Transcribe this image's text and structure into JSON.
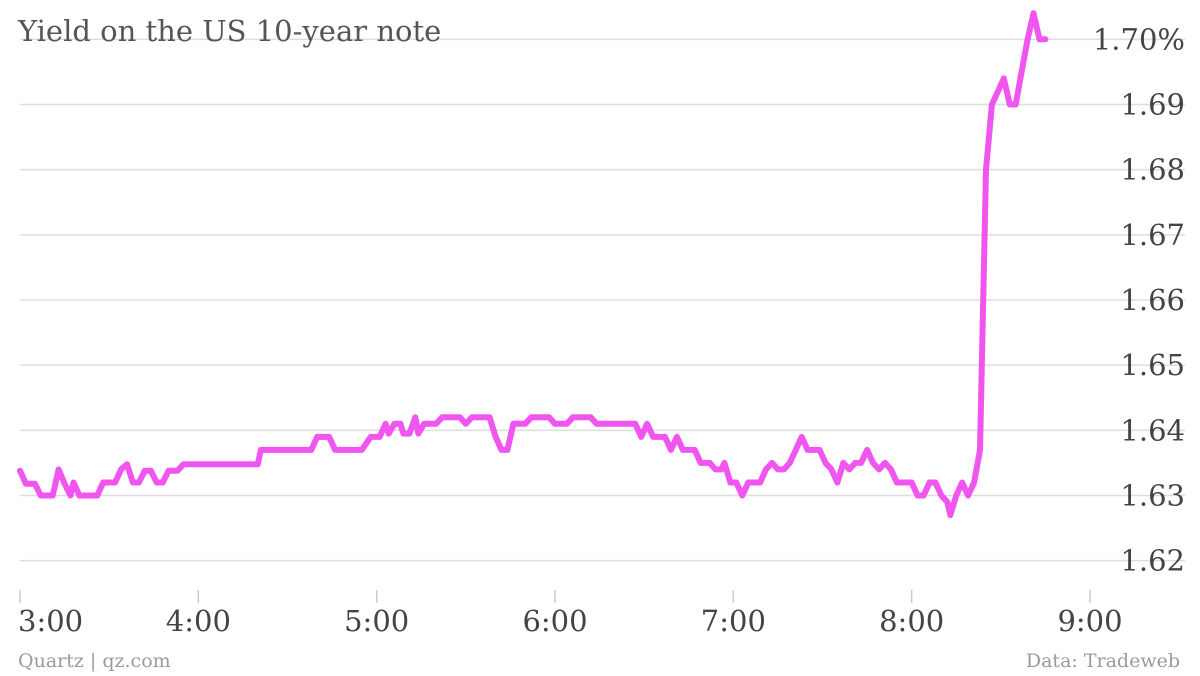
{
  "chart_data": {
    "type": "line",
    "title": "Yield on the US 10-year note",
    "xlabel": "",
    "ylabel": "",
    "x_ticks": [
      "3:00",
      "4:00",
      "5:00",
      "6:00",
      "7:00",
      "8:00",
      "9:00"
    ],
    "y_ticks": [
      {
        "value": 1.62,
        "label": "1.62"
      },
      {
        "value": 1.63,
        "label": "1.63"
      },
      {
        "value": 1.64,
        "label": "1.64"
      },
      {
        "value": 1.65,
        "label": "1.65"
      },
      {
        "value": 1.66,
        "label": "1.66"
      },
      {
        "value": 1.67,
        "label": "1.67"
      },
      {
        "value": 1.68,
        "label": "1.68"
      },
      {
        "value": 1.69,
        "label": "1.69"
      },
      {
        "value": 1.7,
        "label": "1.70%"
      }
    ],
    "xlim": [
      "3:00",
      "9:00"
    ],
    "ylim": [
      1.6155,
      1.7045
    ],
    "grid": true,
    "y_axis_position": "right",
    "series": [
      {
        "color": "#f055f0",
        "points": [
          [
            "3:00",
            1.6338
          ],
          [
            "3:02",
            1.6318
          ],
          [
            "3:05",
            1.6318
          ],
          [
            "3:07",
            1.63
          ],
          [
            "3:09",
            1.63
          ],
          [
            "3:11",
            1.63
          ],
          [
            "3:13",
            1.634
          ],
          [
            "3:15",
            1.6318
          ],
          [
            "3:17",
            1.63
          ],
          [
            "3:18",
            1.632
          ],
          [
            "3:20",
            1.63
          ],
          [
            "3:23",
            1.63
          ],
          [
            "3:26",
            1.63
          ],
          [
            "3:28",
            1.632
          ],
          [
            "3:32",
            1.632
          ],
          [
            "3:34",
            1.634
          ],
          [
            "3:36",
            1.6348
          ],
          [
            "3:38",
            1.632
          ],
          [
            "3:40",
            1.632
          ],
          [
            "3:42",
            1.6338
          ],
          [
            "3:44",
            1.6338
          ],
          [
            "3:46",
            1.632
          ],
          [
            "3:48",
            1.632
          ],
          [
            "3:50",
            1.6338
          ],
          [
            "3:53",
            1.6338
          ],
          [
            "3:55",
            1.6348
          ],
          [
            "4:00",
            1.6348
          ],
          [
            "4:10",
            1.6348
          ],
          [
            "4:20",
            1.6348
          ],
          [
            "4:21",
            1.637
          ],
          [
            "4:30",
            1.637
          ],
          [
            "4:38",
            1.637
          ],
          [
            "4:40",
            1.639
          ],
          [
            "4:44",
            1.639
          ],
          [
            "4:46",
            1.637
          ],
          [
            "4:50",
            1.637
          ],
          [
            "4:55",
            1.637
          ],
          [
            "4:58",
            1.639
          ],
          [
            "5:01",
            1.639
          ],
          [
            "5:03",
            1.641
          ],
          [
            "5:04",
            1.6395
          ],
          [
            "5:06",
            1.641
          ],
          [
            "5:08",
            1.641
          ],
          [
            "5:09",
            1.6395
          ],
          [
            "5:11",
            1.6395
          ],
          [
            "5:13",
            1.642
          ],
          [
            "5:14",
            1.6395
          ],
          [
            "5:16",
            1.641
          ],
          [
            "5:20",
            1.641
          ],
          [
            "5:22",
            1.642
          ],
          [
            "5:28",
            1.642
          ],
          [
            "5:30",
            1.641
          ],
          [
            "5:32",
            1.642
          ],
          [
            "5:38",
            1.642
          ],
          [
            "5:40",
            1.639
          ],
          [
            "5:42",
            1.637
          ],
          [
            "5:44",
            1.637
          ],
          [
            "5:46",
            1.641
          ],
          [
            "5:50",
            1.641
          ],
          [
            "5:52",
            1.642
          ],
          [
            "5:58",
            1.642
          ],
          [
            "6:00",
            1.641
          ],
          [
            "6:04",
            1.641
          ],
          [
            "6:06",
            1.642
          ],
          [
            "6:12",
            1.642
          ],
          [
            "6:14",
            1.641
          ],
          [
            "6:20",
            1.641
          ],
          [
            "6:25",
            1.641
          ],
          [
            "6:27",
            1.641
          ],
          [
            "6:29",
            1.639
          ],
          [
            "6:31",
            1.641
          ],
          [
            "6:33",
            1.639
          ],
          [
            "6:37",
            1.639
          ],
          [
            "6:39",
            1.637
          ],
          [
            "6:41",
            1.639
          ],
          [
            "6:43",
            1.637
          ],
          [
            "6:47",
            1.637
          ],
          [
            "6:49",
            1.635
          ],
          [
            "6:52",
            1.635
          ],
          [
            "6:54",
            1.634
          ],
          [
            "6:56",
            1.634
          ],
          [
            "6:57",
            1.635
          ],
          [
            "6:59",
            1.632
          ],
          [
            "7:01",
            1.632
          ],
          [
            "7:03",
            1.63
          ],
          [
            "7:05",
            1.632
          ],
          [
            "7:09",
            1.632
          ],
          [
            "7:11",
            1.634
          ],
          [
            "7:13",
            1.635
          ],
          [
            "7:15",
            1.634
          ],
          [
            "7:17",
            1.634
          ],
          [
            "7:19",
            1.635
          ],
          [
            "7:21",
            1.637
          ],
          [
            "7:23",
            1.639
          ],
          [
            "7:25",
            1.637
          ],
          [
            "7:29",
            1.637
          ],
          [
            "7:31",
            1.635
          ],
          [
            "7:33",
            1.634
          ],
          [
            "7:35",
            1.632
          ],
          [
            "7:37",
            1.635
          ],
          [
            "7:39",
            1.634
          ],
          [
            "7:41",
            1.635
          ],
          [
            "7:43",
            1.635
          ],
          [
            "7:45",
            1.637
          ],
          [
            "7:47",
            1.635
          ],
          [
            "7:49",
            1.634
          ],
          [
            "7:51",
            1.635
          ],
          [
            "7:53",
            1.634
          ],
          [
            "7:55",
            1.632
          ],
          [
            "7:58",
            1.632
          ],
          [
            "8:00",
            1.632
          ],
          [
            "8:02",
            1.63
          ],
          [
            "8:04",
            1.63
          ],
          [
            "8:06",
            1.632
          ],
          [
            "8:08",
            1.632
          ],
          [
            "8:10",
            1.63
          ],
          [
            "8:12",
            1.629
          ],
          [
            "8:13",
            1.627
          ],
          [
            "8:15",
            1.63
          ],
          [
            "8:17",
            1.632
          ],
          [
            "8:19",
            1.63
          ],
          [
            "8:21",
            1.632
          ],
          [
            "8:23",
            1.637
          ],
          [
            "8:25",
            1.68
          ],
          [
            "8:27",
            1.69
          ],
          [
            "8:29",
            1.692
          ],
          [
            "8:31",
            1.694
          ],
          [
            "8:33",
            1.69
          ],
          [
            "8:35",
            1.69
          ],
          [
            "8:37",
            1.695
          ],
          [
            "8:39",
            1.7
          ],
          [
            "8:41",
            1.704
          ],
          [
            "8:43",
            1.7
          ],
          [
            "8:45",
            1.7
          ]
        ]
      }
    ]
  },
  "footer": {
    "source_left": "Quartz | qz.com",
    "source_right": "Data: Tradeweb"
  }
}
